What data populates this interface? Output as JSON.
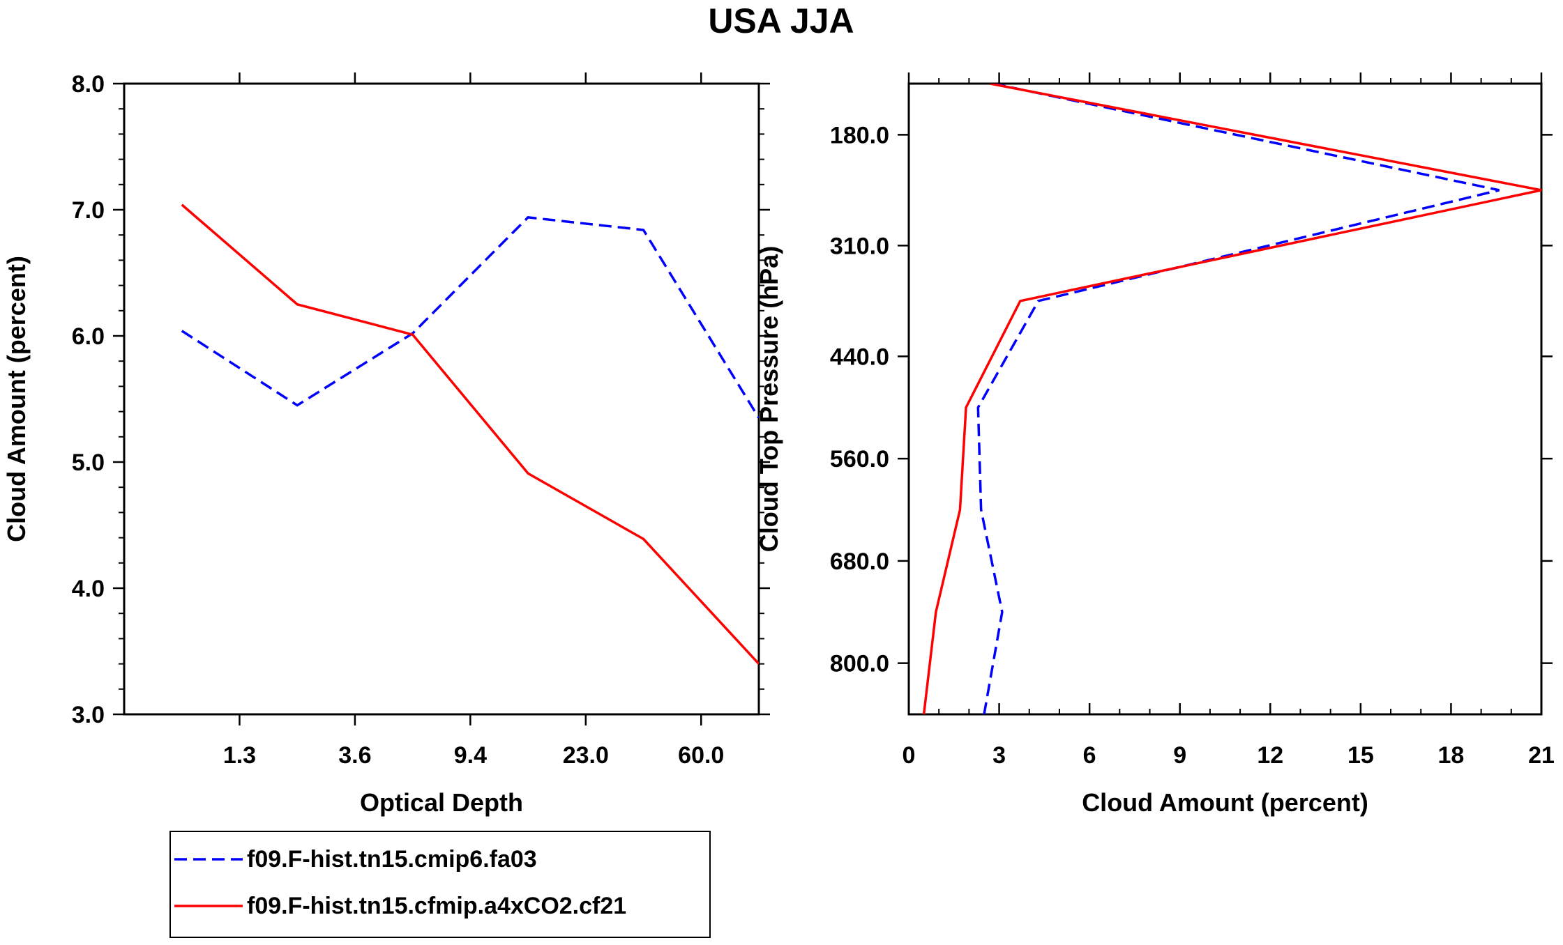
{
  "title": "USA JJA",
  "colors": {
    "series1": "#0000ff",
    "series2": "#ff0000"
  },
  "legend": {
    "entries": [
      {
        "label": "f09.F-hist.tn15.cmip6.fa03",
        "style": "dashed",
        "color": "#0000ff"
      },
      {
        "label": "f09.F-hist.tn15.cfmip.a4xCO2.cf21",
        "style": "solid",
        "color": "#ff0000"
      }
    ]
  },
  "chart_data": [
    {
      "type": "line",
      "xlabel": "Optical Depth",
      "ylabel": "Cloud Amount (percent)",
      "x": [
        0,
        1,
        2,
        3,
        4,
        5
      ],
      "xlim": [
        -0.5,
        5.0
      ],
      "x_tick_positions": [
        0.5,
        1.5,
        2.5,
        3.5,
        4.5
      ],
      "x_tick_labels": [
        "1.3",
        "3.6",
        "9.4",
        "23.0",
        "60.0"
      ],
      "ylim": [
        3.0,
        8.0
      ],
      "y_ticks": [
        3.0,
        4.0,
        5.0,
        6.0,
        7.0,
        8.0
      ],
      "y_tick_labels": [
        "3.0",
        "4.0",
        "5.0",
        "6.0",
        "7.0",
        "8.0"
      ],
      "series": [
        {
          "name": "f09.F-hist.tn15.cmip6.fa03",
          "style": "dashed",
          "values": [
            6.04,
            5.45,
            6.02,
            6.94,
            6.84,
            5.35
          ]
        },
        {
          "name": "f09.F-hist.tn15.cfmip.a4xCO2.cf21",
          "style": "solid",
          "values": [
            7.04,
            6.25,
            6.01,
            4.91,
            4.39,
            3.4
          ]
        }
      ]
    },
    {
      "type": "line",
      "orientation": "vertical-profile",
      "xlabel": "Cloud Amount (percent)",
      "ylabel": "Cloud Top Pressure (hPa)",
      "xlim": [
        0,
        21
      ],
      "x_ticks": [
        0,
        3,
        6,
        9,
        12,
        15,
        18,
        21
      ],
      "x_tick_labels": [
        "0",
        "3",
        "6",
        "9",
        "12",
        "15",
        "18",
        "21"
      ],
      "ylim": [
        120,
        860
      ],
      "y_ticks": [
        180,
        310,
        440,
        560,
        680,
        800
      ],
      "y_tick_labels": [
        "180.0",
        "310.0",
        "440.0",
        "560.0",
        "680.0",
        "800.0"
      ],
      "pressure": [
        120,
        245,
        375,
        500,
        620,
        740,
        860
      ],
      "series": [
        {
          "name": "f09.F-hist.tn15.cmip6.fa03",
          "style": "dashed",
          "values": [
            2.8,
            19.6,
            4.3,
            2.3,
            2.4,
            3.1,
            2.5
          ]
        },
        {
          "name": "f09.F-hist.tn15.cfmip.a4xCO2.cf21",
          "style": "solid",
          "values": [
            2.7,
            21.0,
            3.7,
            1.9,
            1.7,
            0.9,
            0.5
          ]
        }
      ]
    }
  ]
}
